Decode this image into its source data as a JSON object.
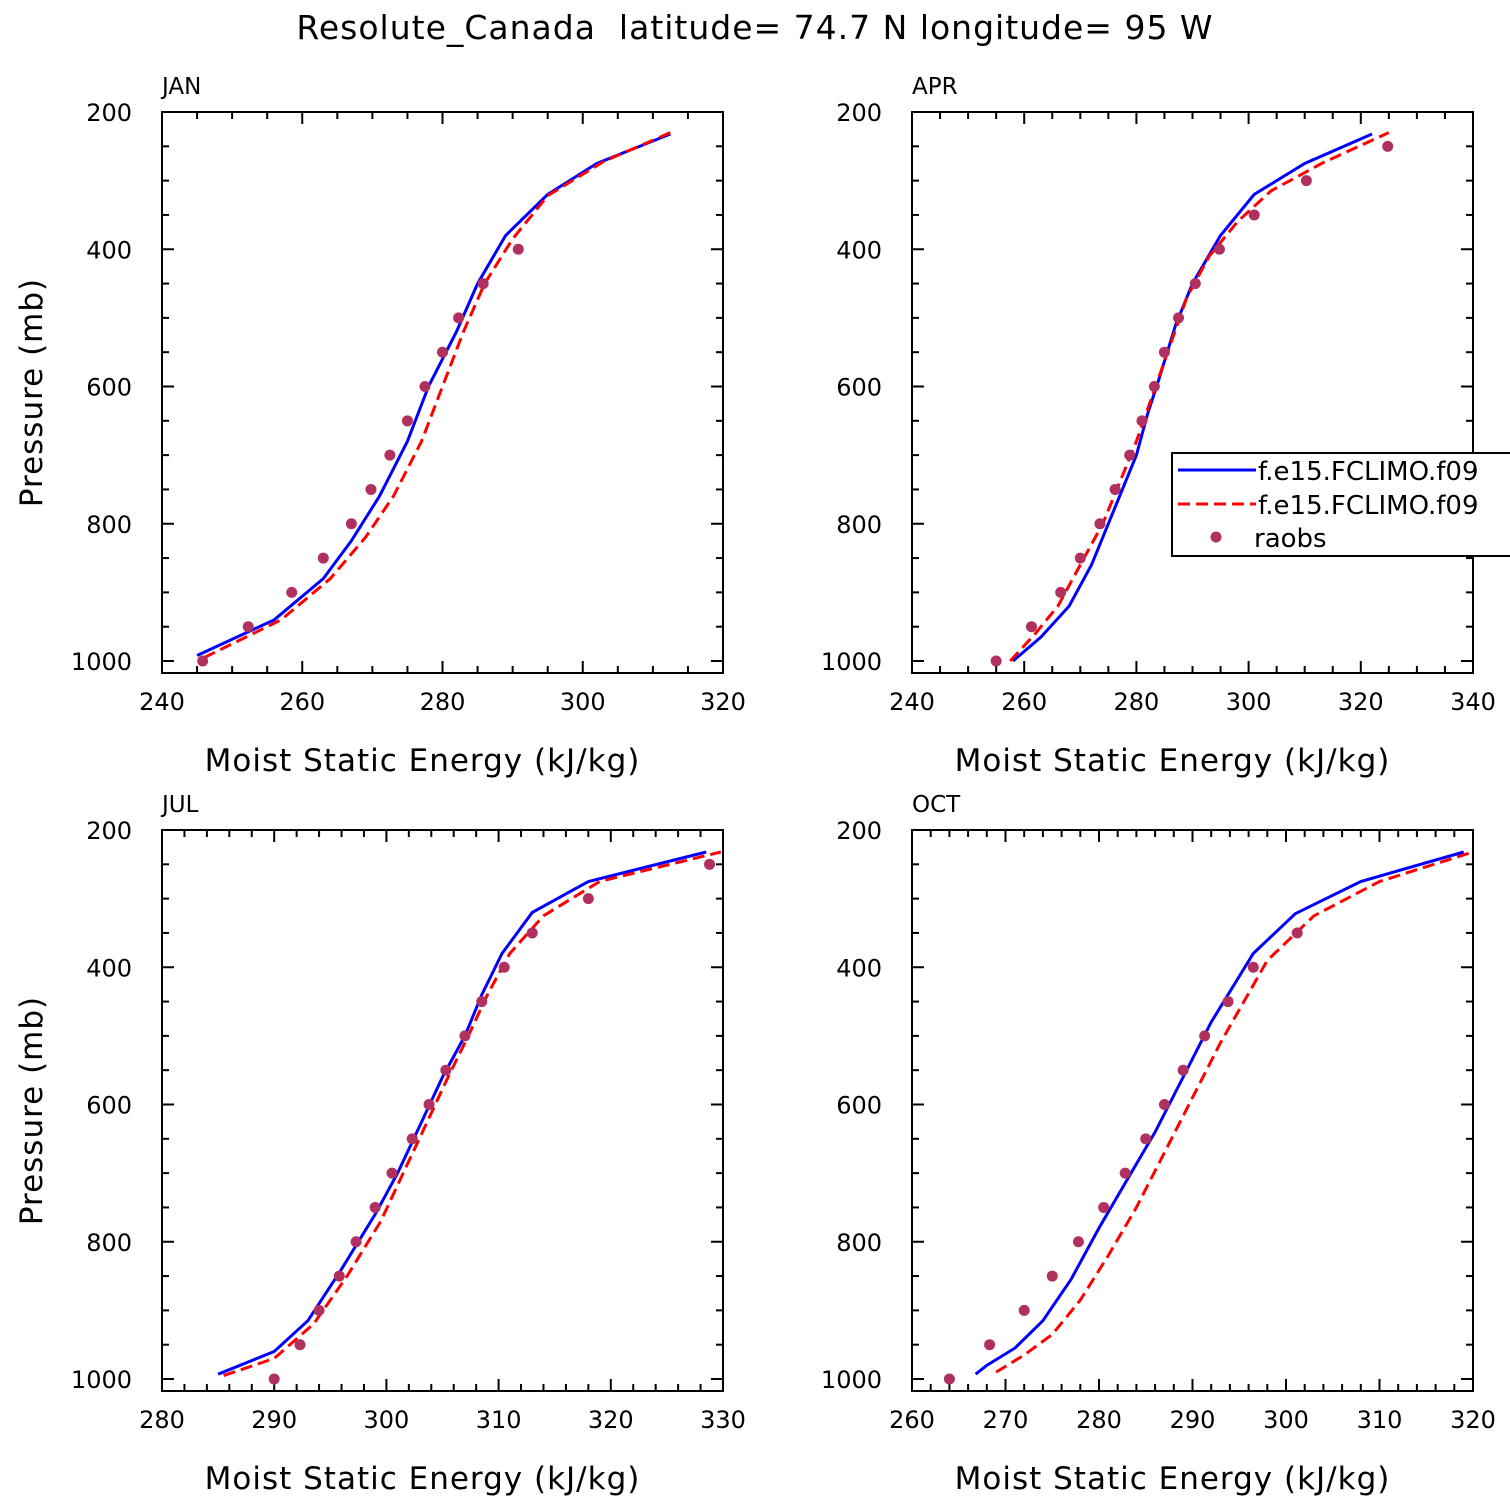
{
  "title": "Resolute_Canada  latitude= 74.7 N longitude= 95 W",
  "legend": {
    "entries": [
      {
        "label": "f.e15.FCLIMO.f09",
        "style": "solid",
        "color": "#0000ff"
      },
      {
        "label": "f.e15.FCLIMO.f09",
        "style": "dashed",
        "color": "#ff0000"
      },
      {
        "label": "raobs",
        "style": "marker",
        "color": "#b03060"
      }
    ],
    "placement": "right-middle of APR panel (clipped at image edge)"
  },
  "colors": {
    "series_blue": "#0000ff",
    "series_red": "#ff0000",
    "raobs": "#b03060"
  },
  "chart_data": [
    {
      "type": "line",
      "panel_label": "JAN",
      "xlabel": "Moist Static Energy (kJ/kg)",
      "ylabel": "Pressure (mb)",
      "xlim": [
        240,
        320
      ],
      "ylim": [
        1000,
        200
      ],
      "xticks": [
        "240",
        "260",
        "280",
        "300",
        "320"
      ],
      "yticks": [
        "200",
        "400",
        "600",
        "800",
        "1000"
      ],
      "series": [
        {
          "name": "f.e15.FCLIMO.f09 (blue)",
          "style": "solid",
          "points": [
            [
              245,
              992
            ],
            [
              256,
              940
            ],
            [
              263,
              880
            ],
            [
              267,
              825
            ],
            [
              271,
              760
            ],
            [
              275,
              680
            ],
            [
              278,
              600
            ],
            [
              282,
              520
            ],
            [
              285,
              450
            ],
            [
              289,
              380
            ],
            [
              295,
              320
            ],
            [
              302,
              275
            ],
            [
              312.5,
              232
            ]
          ]
        },
        {
          "name": "f.e15.FCLIMO.f09 (red)",
          "style": "dashed",
          "points": [
            [
              246,
              995
            ],
            [
              257,
              940
            ],
            [
              264,
              880
            ],
            [
              269,
              820
            ],
            [
              273,
              760
            ],
            [
              277,
              680
            ],
            [
              280,
              600
            ],
            [
              283,
              520
            ],
            [
              286,
              450
            ],
            [
              290,
              385
            ],
            [
              295,
              322
            ],
            [
              303,
              272
            ],
            [
              312.5,
              230
            ]
          ]
        },
        {
          "name": "raobs",
          "style": "marker",
          "points": [
            [
              245.8,
              1000
            ],
            [
              252.3,
              950
            ],
            [
              258.5,
              900
            ],
            [
              263,
              850
            ],
            [
              267,
              800
            ],
            [
              269.8,
              750
            ],
            [
              272.5,
              700
            ],
            [
              275,
              650
            ],
            [
              277.5,
              600
            ],
            [
              280,
              550
            ],
            [
              282.3,
              500
            ],
            [
              285.8,
              450
            ],
            [
              290.8,
              400
            ]
          ]
        }
      ]
    },
    {
      "type": "line",
      "panel_label": "APR",
      "xlabel": "Moist Static Energy (kJ/kg)",
      "ylabel": "",
      "xlim": [
        240,
        340
      ],
      "ylim": [
        1000,
        200
      ],
      "xticks": [
        "240",
        "260",
        "280",
        "300",
        "320",
        "340"
      ],
      "yticks": [
        "200",
        "400",
        "600",
        "800",
        "1000"
      ],
      "series": [
        {
          "name": "f.e15.FCLIMO.f09 (blue)",
          "style": "solid",
          "points": [
            [
              258,
              1000
            ],
            [
              263,
              965
            ],
            [
              268,
              920
            ],
            [
              272,
              860
            ],
            [
              275,
              800
            ],
            [
              278,
              740
            ],
            [
              280,
              700
            ],
            [
              282,
              640
            ],
            [
              284,
              590
            ],
            [
              287,
              510
            ],
            [
              290,
              450
            ],
            [
              295,
              380
            ],
            [
              301,
              320
            ],
            [
              310,
              275
            ],
            [
              322,
              232
            ]
          ]
        },
        {
          "name": "f.e15.FCLIMO.f09 (red)",
          "style": "dashed",
          "points": [
            [
              257.5,
              1000
            ],
            [
              262,
              960
            ],
            [
              266,
              920
            ],
            [
              270,
              860
            ],
            [
              274,
              800
            ],
            [
              277,
              740
            ],
            [
              280,
              680
            ],
            [
              283,
              610
            ],
            [
              286,
              540
            ],
            [
              289,
              470
            ],
            [
              293,
              410
            ],
            [
              298,
              360
            ],
            [
              304,
              315
            ],
            [
              313,
              275
            ],
            [
              325,
              230
            ]
          ]
        },
        {
          "name": "raobs",
          "style": "marker",
          "points": [
            [
              255,
              1000
            ],
            [
              261.3,
              950
            ],
            [
              266.5,
              900
            ],
            [
              270,
              850
            ],
            [
              273.5,
              800
            ],
            [
              276.2,
              750
            ],
            [
              278.8,
              700
            ],
            [
              281,
              650
            ],
            [
              283.2,
              600
            ],
            [
              285,
              550
            ],
            [
              287.5,
              500
            ],
            [
              290.5,
              450
            ],
            [
              294.8,
              400
            ],
            [
              301,
              350
            ],
            [
              310.3,
              300
            ],
            [
              324.8,
              250
            ]
          ]
        }
      ]
    },
    {
      "type": "line",
      "panel_label": "JUL",
      "xlabel": "Moist Static Energy (kJ/kg)",
      "ylabel": "Pressure (mb)",
      "xlim": [
        280,
        330
      ],
      "ylim": [
        1000,
        200
      ],
      "xticks": [
        "280",
        "290",
        "300",
        "310",
        "320",
        "330"
      ],
      "yticks": [
        "200",
        "400",
        "600",
        "800",
        "1000"
      ],
      "series": [
        {
          "name": "f.e15.FCLIMO.f09 (blue)",
          "style": "solid",
          "points": [
            [
              285,
              993
            ],
            [
              290,
              960
            ],
            [
              293,
              915
            ],
            [
              296,
              840
            ],
            [
              299,
              760
            ],
            [
              301,
              700
            ],
            [
              303,
              630
            ],
            [
              305,
              560
            ],
            [
              307,
              500
            ],
            [
              308.5,
              440
            ],
            [
              310.3,
              380
            ],
            [
              313,
              320
            ],
            [
              318,
              275
            ],
            [
              328.5,
              232
            ]
          ]
        },
        {
          "name": "f.e15.FCLIMO.f09 (red)",
          "style": "dashed",
          "points": [
            [
              285.5,
              995
            ],
            [
              290,
              970
            ],
            [
              293.5,
              920
            ],
            [
              296.5,
              850
            ],
            [
              299.5,
              770
            ],
            [
              301.5,
              700
            ],
            [
              303.5,
              630
            ],
            [
              305.5,
              560
            ],
            [
              307.3,
              500
            ],
            [
              309,
              440
            ],
            [
              311,
              380
            ],
            [
              314,
              325
            ],
            [
              319,
              275
            ],
            [
              329.8,
              232
            ]
          ]
        },
        {
          "name": "raobs",
          "style": "marker",
          "points": [
            [
              290,
              1000
            ],
            [
              292.3,
              950
            ],
            [
              294,
              900
            ],
            [
              295.8,
              850
            ],
            [
              297.3,
              800
            ],
            [
              299,
              750
            ],
            [
              300.5,
              700
            ],
            [
              302.3,
              650
            ],
            [
              303.8,
              600
            ],
            [
              305.3,
              550
            ],
            [
              307,
              500
            ],
            [
              308.5,
              450
            ],
            [
              310.5,
              400
            ],
            [
              313,
              350
            ],
            [
              318,
              300
            ],
            [
              328.8,
              250
            ]
          ]
        }
      ]
    },
    {
      "type": "line",
      "panel_label": "OCT",
      "xlabel": "Moist Static Energy (kJ/kg)",
      "ylabel": "",
      "xlim": [
        260,
        320
      ],
      "ylim": [
        1000,
        200
      ],
      "xticks": [
        "260",
        "270",
        "280",
        "290",
        "300",
        "310",
        "320"
      ],
      "yticks": [
        "200",
        "400",
        "600",
        "800",
        "1000"
      ],
      "series": [
        {
          "name": "f.e15.FCLIMO.f09 (blue)",
          "style": "solid",
          "points": [
            [
              266.8,
              993
            ],
            [
              268,
              980
            ],
            [
              271,
              955
            ],
            [
              274,
              915
            ],
            [
              277,
              855
            ],
            [
              280,
              780
            ],
            [
              283,
              710
            ],
            [
              286,
              640
            ],
            [
              289,
              560
            ],
            [
              292,
              480
            ],
            [
              296.5,
              380
            ],
            [
              301,
              322
            ],
            [
              308,
              275
            ],
            [
              319,
              232
            ]
          ]
        },
        {
          "name": "f.e15.FCLIMO.f09 (red)",
          "style": "dashed",
          "points": [
            [
              269,
              990
            ],
            [
              272,
              965
            ],
            [
              275,
              935
            ],
            [
              278,
              885
            ],
            [
              281,
              820
            ],
            [
              284,
              750
            ],
            [
              287,
              670
            ],
            [
              290,
              590
            ],
            [
              293,
              510
            ],
            [
              295.5,
              450
            ],
            [
              298,
              390
            ],
            [
              303,
              325
            ],
            [
              310,
              275
            ],
            [
              320,
              232
            ]
          ]
        },
        {
          "name": "raobs",
          "style": "marker",
          "points": [
            [
              264,
              1000
            ],
            [
              268.3,
              950
            ],
            [
              272,
              900
            ],
            [
              275,
              850
            ],
            [
              277.8,
              800
            ],
            [
              280.5,
              750
            ],
            [
              282.8,
              700
            ],
            [
              285,
              650
            ],
            [
              287,
              600
            ],
            [
              289,
              550
            ],
            [
              291.3,
              500
            ],
            [
              293.8,
              450
            ],
            [
              296.5,
              400
            ],
            [
              301.2,
              350
            ]
          ]
        }
      ]
    }
  ]
}
